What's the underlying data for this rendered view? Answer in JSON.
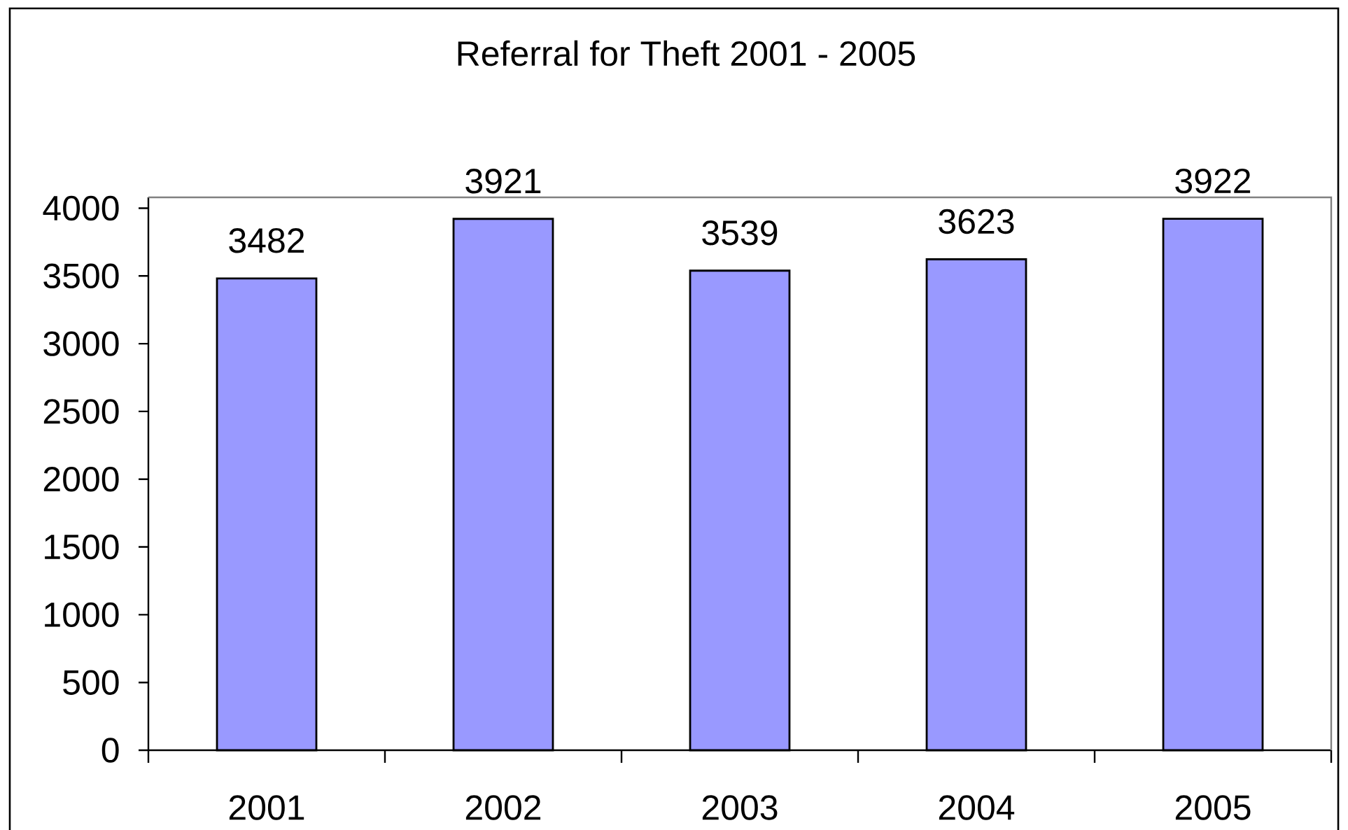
{
  "chart_data": {
    "type": "bar",
    "title": "Referral for Theft 2001 - 2005",
    "categories": [
      "2001",
      "2002",
      "2003",
      "2004",
      "2005"
    ],
    "values": [
      3482,
      3921,
      3539,
      3623,
      3922
    ],
    "color": "#9999ff",
    "ylim": [
      0,
      4080
    ],
    "yticks": [
      0,
      500,
      1000,
      1500,
      2000,
      2500,
      3000,
      3500,
      4000
    ],
    "data_labels": true
  }
}
